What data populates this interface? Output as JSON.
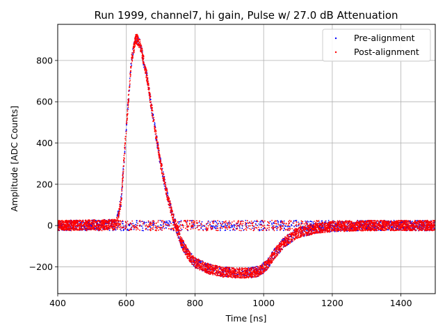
{
  "chart_data": {
    "type": "scatter",
    "title": "Run 1999, channel7, hi gain, Pulse w/ 27.0 dB Attenuation",
    "xlabel": "Time [ns]",
    "ylabel": "Amplitude [ADC Counts]",
    "xlim": [
      400,
      1500
    ],
    "ylim": [
      -330,
      975
    ],
    "xticks": [
      400,
      600,
      800,
      1000,
      1200,
      1400
    ],
    "yticks": [
      -200,
      0,
      200,
      400,
      600,
      800
    ],
    "xtick_labels": [
      "400",
      "600",
      "800",
      "1000",
      "1200",
      "1400"
    ],
    "ytick_labels": [
      "−200",
      "0",
      "200",
      "400",
      "600",
      "800"
    ],
    "grid": true,
    "legend_position": "top-right",
    "series": [
      {
        "name": "Pre-alignment",
        "color": "#0000ff",
        "marker": "dot"
      },
      {
        "name": "Post-alignment",
        "color": "#ff0000",
        "marker": "dot"
      }
    ],
    "pulse_profile": {
      "x": [
        400,
        570,
        585,
        600,
        615,
        628,
        640,
        660,
        680,
        700,
        720,
        740,
        760,
        780,
        800,
        840,
        880,
        920,
        960,
        990,
        1010,
        1030,
        1060,
        1100,
        1150,
        1200,
        1300,
        1500
      ],
      "y": [
        0,
        5,
        120,
        480,
        800,
        910,
        880,
        720,
        500,
        300,
        140,
        20,
        -80,
        -140,
        -180,
        -210,
        -225,
        -230,
        -230,
        -220,
        -190,
        -140,
        -80,
        -35,
        -15,
        -5,
        0,
        0
      ],
      "band_halfwidth": 25,
      "flat_baseline": 0
    }
  }
}
